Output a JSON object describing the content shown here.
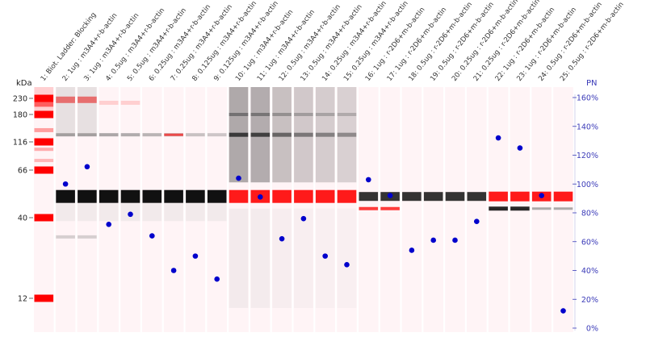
{
  "chart_data": {
    "type": "scatter",
    "left_axis_title": "kDa",
    "right_axis_title": "PN",
    "kda_ticks": [
      230,
      180,
      116,
      66,
      40,
      12
    ],
    "pn_ticks": [
      "0%",
      "20%",
      "40%",
      "60%",
      "80%",
      "100%",
      "120%",
      "140%",
      "160%"
    ],
    "pn_range": [
      0,
      160
    ],
    "lanes": [
      "1: Biot. Ladder: Blocking",
      "2: 1ug : m3A4+r-b-actin",
      "3: 1ug : m3A4+r-b-actin",
      "4: 0.5ug : m3A4+r-b-actin",
      "5: 0.5ug : m3A4+r-b-actin",
      "6: 0.25ug : m3A4+r-b-actin",
      "7: 0.25ug : m3A4+r-b-actin",
      "8: 0.125ug : m3A4+r-b-actin",
      "9: 0.125ug : m3A4+r-b-actin",
      "10: 1ug : m3A4+r-b-actin",
      "11: 1ug : m3A4+r-b-actin",
      "12: 0.5ug : m3A4+r-b-actin",
      "13: 0.5ug : m3A4+r-b-actin",
      "14: 0.25ug : m3A4+r-b-actin",
      "15: 0.25ug : m3A4+r-b-actin",
      "16: 1ug : r-2D6+m-b-actin",
      "17: 1ug : r-2D6+m-b-actin",
      "18: 0.5ug : r-2D6+m-b-actin",
      "19: 0.5ug : r-2D6+m-b-actin",
      "20: 0.25ug : r-2D6+m-b-actin",
      "21: 0.25ug : r-2D6+m-b-actin",
      "22: 1ug : r-2D6+m-b-actin",
      "23: 1ug : r-2D6+m-b-actin",
      "24: 0.5ug : r-2D6+m-b-actin",
      "25: 0.5ug : r-2D6+m-b-actin"
    ],
    "pn_values": [
      null,
      100,
      112,
      72,
      79,
      64,
      40,
      50,
      34,
      104,
      91,
      62,
      76,
      50,
      44,
      103,
      92,
      54,
      61,
      61,
      74,
      132,
      125,
      92,
      12
    ],
    "colors": {
      "ladder": "#ff0000",
      "band_black": "#111111",
      "band_red": "#ff1a1a",
      "point": "#0000cc",
      "pn_axis": "#3b3bb8"
    }
  }
}
